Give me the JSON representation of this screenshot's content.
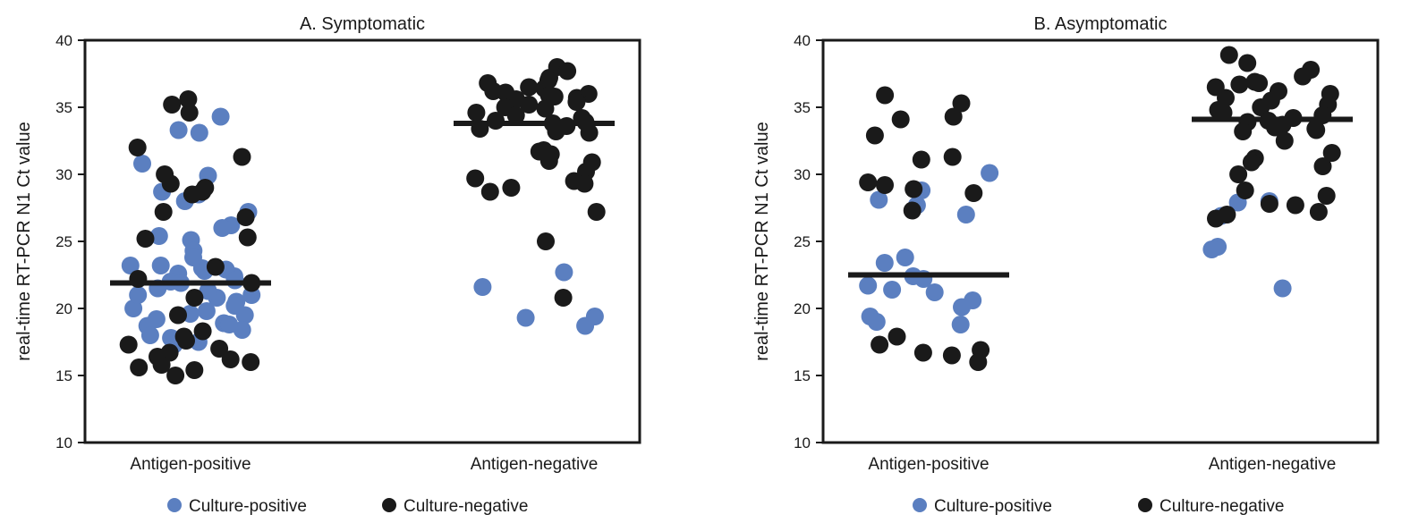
{
  "colors": {
    "culture_positive": "#5b7fc0",
    "culture_negative": "#1a1a1a"
  },
  "legend": [
    {
      "label": "Culture-positive",
      "series": "culture_positive",
      "icon": "filled-circle"
    },
    {
      "label": "Culture-negative",
      "series": "culture_negative",
      "icon": "filled-circle"
    }
  ],
  "chart_data": [
    {
      "type": "scatter",
      "title": "A. Symptomatic",
      "ylabel": "real-time RT-PCR N1 Ct value",
      "xlabel": "",
      "categories": [
        "Antigen-positive",
        "Antigen-negative"
      ],
      "ylim": [
        10,
        40
      ],
      "yticks": [
        10,
        15,
        20,
        25,
        30,
        35,
        40
      ],
      "medians": [
        21.9,
        33.8
      ],
      "series": [
        {
          "name": "Culture-positive",
          "color_key": "culture_positive",
          "groups": [
            [
              34.3,
              28.5,
              28.0,
              28.7,
              26.2,
              26.0,
              25.1,
              24.3,
              23.8,
              23.2,
              23.0,
              22.8,
              22.6,
              22.4,
              22.0,
              21.9,
              21.5,
              21.0,
              20.8,
              20.5,
              20.2,
              20.0,
              19.8,
              19.5,
              19.2,
              18.9,
              18.7,
              18.4,
              18.0,
              17.8,
              17.5,
              17.3,
              33.3,
              33.1,
              30.8,
              29.9,
              27.2,
              25.4,
              23.2,
              22.9,
              22.1,
              21.3,
              21.0,
              19.6,
              18.8
            ],
            [
              22.7,
              21.6,
              19.3,
              19.4,
              18.7
            ]
          ]
        },
        {
          "name": "Culture-negative",
          "color_key": "culture_negative",
          "groups": [
            [
              35.6,
              35.2,
              34.6,
              32.0,
              31.3,
              30.0,
              29.3,
              29.0,
              28.7,
              28.5,
              27.2,
              26.8,
              25.3,
              25.2,
              23.1,
              22.2,
              21.9,
              20.8,
              19.5,
              18.3,
              17.9,
              17.6,
              17.3,
              17.0,
              16.7,
              16.4,
              16.2,
              16.0,
              15.8,
              15.6,
              15.4,
              15.0
            ],
            [
              38.0,
              37.7,
              37.2,
              37.0,
              36.8,
              36.5,
              36.4,
              36.2,
              36.1,
              36.0,
              35.9,
              35.8,
              35.7,
              35.6,
              35.4,
              35.2,
              35.0,
              34.9,
              34.6,
              34.4,
              34.2,
              34.0,
              33.9,
              33.8,
              33.6,
              33.4,
              33.2,
              33.1,
              31.8,
              31.7,
              31.5,
              31.0,
              30.9,
              30.2,
              29.7,
              29.5,
              29.3,
              29.0,
              28.7,
              27.2,
              25.0,
              20.8
            ]
          ]
        }
      ]
    },
    {
      "type": "scatter",
      "title": "B. Asymptomatic",
      "ylabel": "real-time RT-PCR N1 Ct value",
      "xlabel": "",
      "categories": [
        "Antigen-positive",
        "Antigen-negative"
      ],
      "ylim": [
        10,
        40
      ],
      "yticks": [
        10,
        15,
        20,
        25,
        30,
        35,
        40
      ],
      "medians": [
        22.5,
        34.1
      ],
      "series": [
        {
          "name": "Culture-positive",
          "color_key": "culture_positive",
          "groups": [
            [
              30.1,
              28.1,
              28.8,
              27.0,
              27.7,
              23.8,
              23.4,
              22.4,
              22.2,
              21.7,
              21.4,
              21.2,
              20.6,
              20.1,
              19.4,
              19.0,
              18.8
            ],
            [
              28.0,
              27.9,
              26.9,
              24.6,
              24.4,
              21.5
            ]
          ]
        },
        {
          "name": "Culture-negative",
          "color_key": "culture_negative",
          "groups": [
            [
              35.9,
              35.3,
              34.3,
              34.1,
              32.9,
              31.3,
              31.1,
              29.4,
              29.2,
              28.9,
              28.6,
              27.3,
              17.9,
              17.3,
              16.9,
              16.7,
              16.5,
              16.0
            ],
            [
              38.9,
              38.3,
              37.8,
              37.3,
              36.9,
              36.8,
              36.7,
              36.5,
              36.2,
              36.0,
              35.7,
              35.5,
              35.2,
              35.0,
              34.8,
              34.6,
              34.4,
              34.2,
              34.0,
              33.9,
              33.7,
              33.5,
              33.4,
              33.3,
              33.2,
              32.5,
              31.6,
              31.2,
              30.9,
              30.6,
              30.0,
              28.8,
              28.4,
              27.8,
              27.7,
              27.2,
              27.0,
              26.7
            ]
          ]
        }
      ]
    }
  ]
}
